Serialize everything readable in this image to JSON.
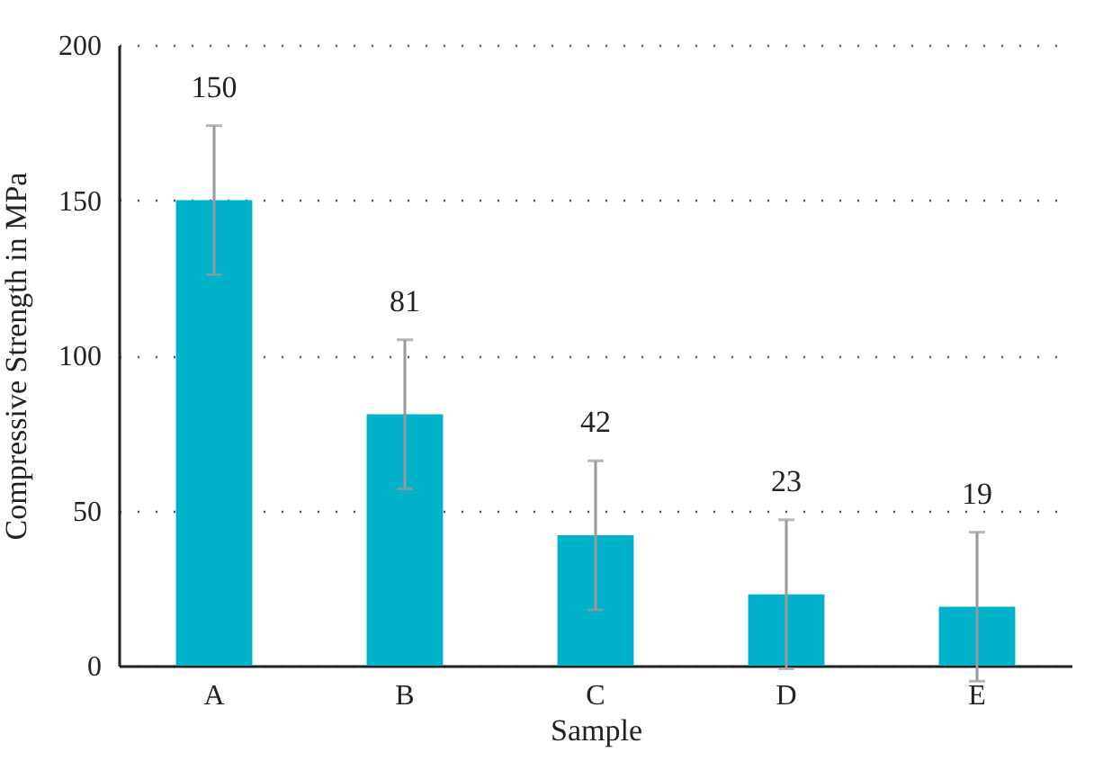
{
  "chart_data": {
    "type": "bar",
    "xlabel": "Sample",
    "ylabel": "Compressive Strength in MPa",
    "categories": [
      "A",
      "B",
      "C",
      "D",
      "E"
    ],
    "values": [
      150,
      81,
      42,
      23,
      19
    ],
    "errors": [
      24,
      24,
      24,
      24,
      24
    ],
    "color": "#00b2c9",
    "ylim": [
      0,
      200
    ],
    "yticks": [
      0,
      50,
      100,
      150,
      200
    ],
    "grid": "y",
    "data_labels": true
  }
}
